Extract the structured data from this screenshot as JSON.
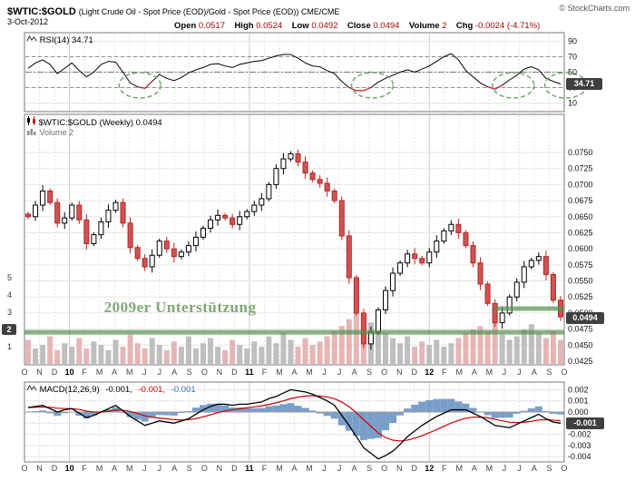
{
  "header": {
    "symbol": "$WTIC:$GOLD",
    "description": "(Light Crude Oil - Spot Price (EOD)/Gold - Spot Price (EOD)) CME/CME",
    "source": "© StockCharts.com",
    "date": "3-Oct-2012",
    "quote": {
      "open_label": "Open",
      "open": "0.0517",
      "high_label": "High",
      "high": "0.0524",
      "low_label": "Low",
      "low": "0.0492",
      "close_label": "Close",
      "close": "0.0494",
      "volume_label": "Volume",
      "volume": "2",
      "chg_label": "Chg",
      "chg": "-0.0024 (-4.71%)"
    }
  },
  "xaxis": {
    "labels": [
      "O",
      "N",
      "D",
      "10",
      "F",
      "M",
      "A",
      "M",
      "J",
      "J",
      "A",
      "S",
      "O",
      "N",
      "D",
      "11",
      "F",
      "M",
      "A",
      "M",
      "J",
      "J",
      "A",
      "S",
      "O",
      "N",
      "D",
      "12",
      "F",
      "M",
      "A",
      "M",
      "J",
      "J",
      "A",
      "S",
      "O"
    ],
    "year_indices": [
      3,
      15,
      27
    ]
  },
  "chart_data": [
    {
      "panel": "rsi",
      "type": "line",
      "label": "RSI(14) 34.71",
      "name": "RSI(14)",
      "current": "34.71",
      "ylim": [
        0,
        100
      ],
      "yticks": [
        "90",
        "70",
        "50",
        "30",
        "10"
      ],
      "ytick_values": [
        90,
        70,
        50,
        30,
        10
      ],
      "hlines": {
        "overbought": 70,
        "mid": 50,
        "oversold": 30
      },
      "line_color": "#000000",
      "oversold_color": "#cc2222",
      "ellipse_color": "#7aa87a",
      "ellipses_month": [
        7.7,
        23.2,
        32.6,
        36.1
      ],
      "values": [
        55,
        62,
        66,
        60,
        48,
        55,
        62,
        52,
        44,
        50,
        60,
        64,
        63,
        50,
        36,
        31,
        29,
        38,
        47,
        42,
        39,
        43,
        49,
        53,
        56,
        60,
        61,
        58,
        56,
        60,
        62,
        64,
        65,
        68,
        71,
        73,
        73,
        68,
        62,
        58,
        57,
        52,
        48,
        38,
        30,
        26,
        26,
        30,
        37,
        42,
        46,
        50,
        53,
        50,
        54,
        58,
        64,
        70,
        74,
        66,
        52,
        44,
        36,
        31,
        28,
        33,
        40,
        46,
        54,
        57,
        53,
        42,
        38,
        34.71
      ]
    },
    {
      "panel": "price",
      "type": "candlestick",
      "label": "$WTIC:$GOLD (Weekly) 0.0494",
      "volume_legend": "Volume 2",
      "current": "0.0494",
      "period": "Oct 2009 - Oct 2012 (weekly, sampled)",
      "ylim": [
        0.0425,
        0.0775
      ],
      "yticks": [
        "0.0750",
        "0.0725",
        "0.0700",
        "0.0675",
        "0.0650",
        "0.0625",
        "0.0600",
        "0.0575",
        "0.0550",
        "0.0525",
        "0.0500",
        "0.0475",
        "0.0450",
        "0.0425"
      ],
      "ytick_values": [
        0.075,
        0.0725,
        0.07,
        0.0675,
        0.065,
        0.0625,
        0.06,
        0.0575,
        0.055,
        0.0525,
        0.05,
        0.0475,
        0.045,
        0.0425
      ],
      "up_color": "#000000",
      "down_color": "#bb2222",
      "close": [
        0.065,
        0.0668,
        0.069,
        0.0672,
        0.064,
        0.0648,
        0.0668,
        0.0645,
        0.0608,
        0.0622,
        0.0642,
        0.066,
        0.0672,
        0.064,
        0.0602,
        0.0585,
        0.0572,
        0.059,
        0.0612,
        0.06,
        0.0588,
        0.0595,
        0.0605,
        0.0618,
        0.0632,
        0.0645,
        0.0652,
        0.0648,
        0.0638,
        0.065,
        0.0658,
        0.0668,
        0.0678,
        0.07,
        0.0725,
        0.074,
        0.0748,
        0.0735,
        0.0718,
        0.0708,
        0.0702,
        0.069,
        0.0675,
        0.062,
        0.0555,
        0.05,
        0.0452,
        0.047,
        0.0505,
        0.0535,
        0.0562,
        0.0578,
        0.0592,
        0.0585,
        0.0578,
        0.0595,
        0.0612,
        0.0628,
        0.0638,
        0.0625,
        0.0605,
        0.0578,
        0.0545,
        0.0515,
        0.0485,
        0.05,
        0.0525,
        0.0548,
        0.0572,
        0.0582,
        0.0588,
        0.056,
        0.052,
        0.0494
      ],
      "volume": [
        1.4,
        0.9,
        1.1,
        1.6,
        0.8,
        1.2,
        1.0,
        1.5,
        0.9,
        1.3,
        1.1,
        0.8,
        1.4,
        1.0,
        1.7,
        1.2,
        0.9,
        1.5,
        1.1,
        0.8,
        1.3,
        1.0,
        1.6,
        0.9,
        1.2,
        1.5,
        1.0,
        0.8,
        1.4,
        1.1,
        0.9,
        1.3,
        1.0,
        1.6,
        1.2,
        1.8,
        1.4,
        1.0,
        1.5,
        1.1,
        1.3,
        1.6,
        1.9,
        2.2,
        2.6,
        3.0,
        2.8,
        2.4,
        2.1,
        1.8,
        1.5,
        1.2,
        1.6,
        1.0,
        1.3,
        1.1,
        1.4,
        1.0,
        1.2,
        1.5,
        1.8,
        2.0,
        2.2,
        1.9,
        2.4,
        1.7,
        1.4,
        1.6,
        2.0,
        2.3,
        1.8,
        1.5,
        1.9,
        1.4
      ],
      "volume_ticks": [
        "5",
        "4",
        "3",
        "2",
        "1"
      ],
      "volume_tick_values": [
        5,
        4,
        3,
        2,
        1
      ],
      "volume_current": "2",
      "volume_up_color": "#b4b4b4",
      "volume_down_color": "#e2a9a9",
      "support_lines": [
        {
          "price": 0.047,
          "from_month": 0,
          "to_month": 36,
          "color": "#55904f"
        },
        {
          "price": 0.0507,
          "from_month": 31.3,
          "to_month": 36,
          "color": "#55904f"
        }
      ],
      "annotation": {
        "text": "2009er Unterstützung",
        "color": "#6a9a5f",
        "month": 5.3,
        "price": 0.0501
      }
    },
    {
      "panel": "macd",
      "type": "macd",
      "label": "MACD(12,26,9)",
      "legend_values": [
        "-0.001,",
        "-0.001,",
        "-0.001"
      ],
      "current": "-0.001",
      "yticks": [
        "0.002",
        "0.001",
        "0.000",
        "-0.001",
        "-0.002",
        "-0.003",
        "-0.004"
      ],
      "ytick_values": [
        0.002,
        0.001,
        0,
        -0.001,
        -0.002,
        -0.003,
        -0.004
      ],
      "signal_period": 9,
      "macd_color": "#000000",
      "signal_color": "#cc0000",
      "hist_color": "#6c93c4",
      "macd": [
        0.0004,
        0.0005,
        0.0006,
        0.0003,
        0.0,
        0.0002,
        0.0003,
        -0.0001,
        -0.0005,
        -0.0003,
        0.0,
        0.0003,
        0.0006,
        0.0001,
        -0.0004,
        -0.0008,
        -0.0012,
        -0.001,
        -0.0008,
        -0.0009,
        -0.001,
        -0.0008,
        -0.0006,
        -0.0002,
        0.0002,
        0.0005,
        0.0007,
        0.0007,
        0.0006,
        0.0007,
        0.0007,
        0.0008,
        0.0009,
        0.0012,
        0.0014,
        0.0017,
        0.002,
        0.0019,
        0.0018,
        0.0016,
        0.0013,
        0.001,
        0.0006,
        -0.0003,
        -0.0012,
        -0.0022,
        -0.0032,
        -0.0037,
        -0.0042,
        -0.0039,
        -0.0035,
        -0.0029,
        -0.0022,
        -0.0017,
        -0.0012,
        -0.0008,
        -0.0004,
        -0.0001,
        0.0002,
        0.0002,
        0.0002,
        -0.0001,
        -0.0004,
        -0.0008,
        -0.0012,
        -0.0013,
        -0.0014,
        -0.0011,
        -0.0008,
        -0.0005,
        -0.0002,
        -0.0006,
        -0.0009,
        -0.001
      ]
    }
  ]
}
